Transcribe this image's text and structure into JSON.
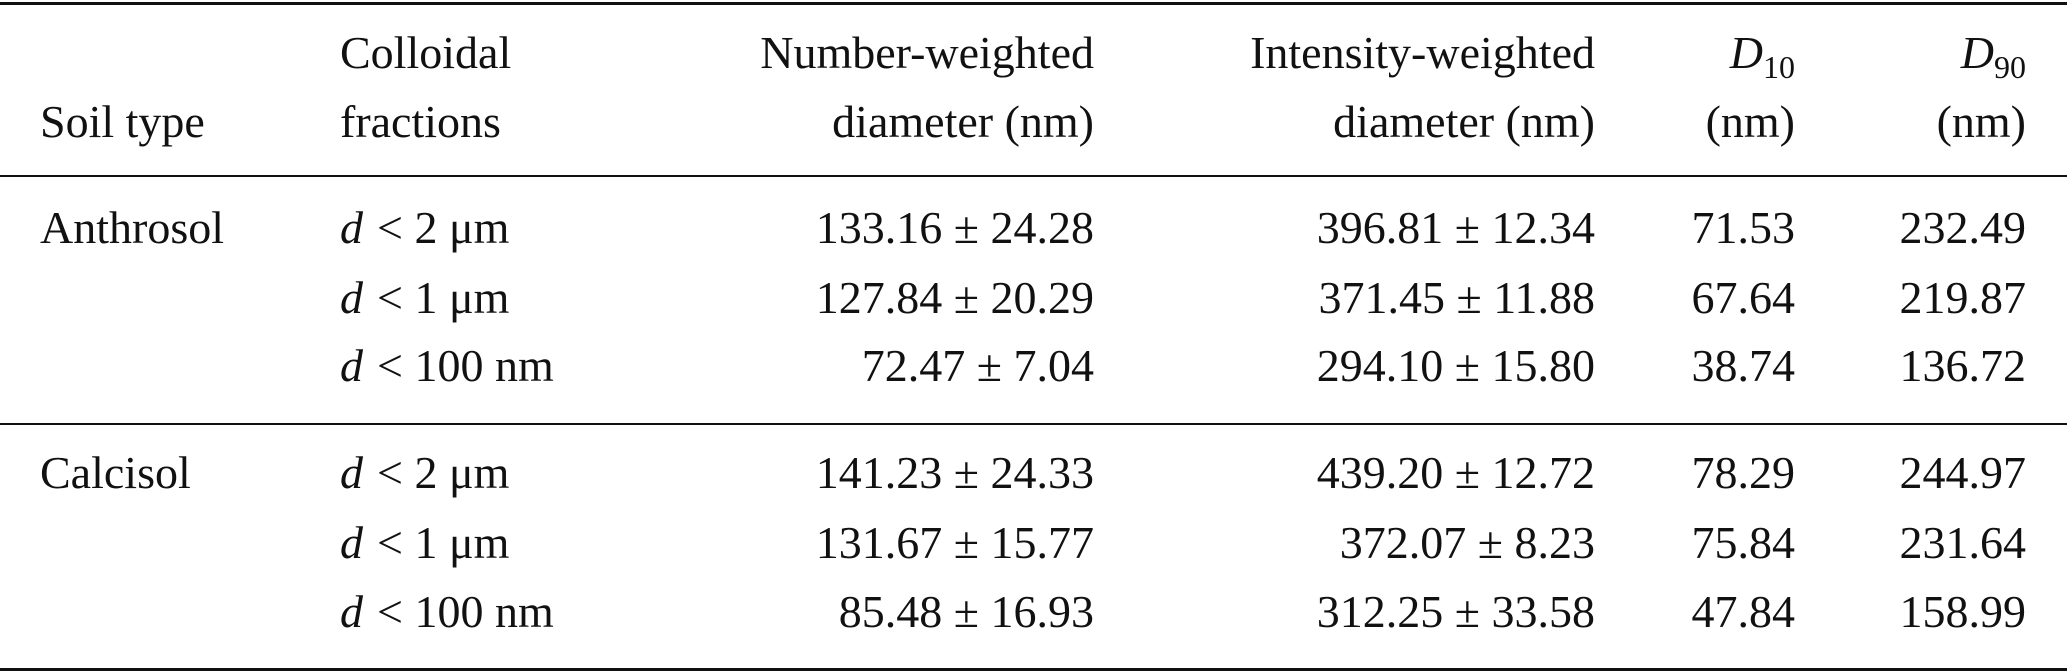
{
  "table": {
    "header": {
      "soil_type": "Soil type",
      "fractions": [
        "Colloidal",
        "fractions"
      ],
      "number_weighted": [
        "Number-weighted",
        "diameter (nm)"
      ],
      "intensity_weighted": [
        "Intensity-weighted",
        "diameter (nm)"
      ],
      "d10": {
        "symbol": "D",
        "sub": "10",
        "unit": "(nm)"
      },
      "d90": {
        "symbol": "D",
        "sub": "90",
        "unit": "(nm)"
      }
    },
    "groups": [
      {
        "soil_type": "Anthrosol",
        "rows": [
          {
            "fraction": {
              "symbol": "d",
              "bound": "< 2 μm"
            },
            "number_weighted": "133.16 ± 24.28",
            "intensity_weighted": "396.81 ± 12.34",
            "d10": 71.53,
            "d90": 232.49
          },
          {
            "fraction": {
              "symbol": "d",
              "bound": "< 1 μm"
            },
            "number_weighted": "127.84 ± 20.29",
            "intensity_weighted": "371.45 ± 11.88",
            "d10": 67.64,
            "d90": 219.87
          },
          {
            "fraction": {
              "symbol": "d",
              "bound": "< 100 nm"
            },
            "number_weighted": "72.47 ± 7.04",
            "intensity_weighted": "294.10 ± 15.80",
            "d10": 38.74,
            "d90": 136.72
          }
        ]
      },
      {
        "soil_type": "Calcisol",
        "rows": [
          {
            "fraction": {
              "symbol": "d",
              "bound": "< 2 μm"
            },
            "number_weighted": "141.23 ± 24.33",
            "intensity_weighted": "439.20 ± 12.72",
            "d10": 78.29,
            "d90": 244.97
          },
          {
            "fraction": {
              "symbol": "d",
              "bound": "< 1 μm"
            },
            "number_weighted": "131.67 ± 15.77",
            "intensity_weighted": "372.07 ± 8.23",
            "d10": 75.84,
            "d90": 231.64
          },
          {
            "fraction": {
              "symbol": "d",
              "bound": "< 100 nm"
            },
            "number_weighted": "85.48 ± 16.93",
            "intensity_weighted": "312.25 ± 33.58",
            "d10": 47.84,
            "d90": 158.99
          }
        ]
      }
    ]
  }
}
